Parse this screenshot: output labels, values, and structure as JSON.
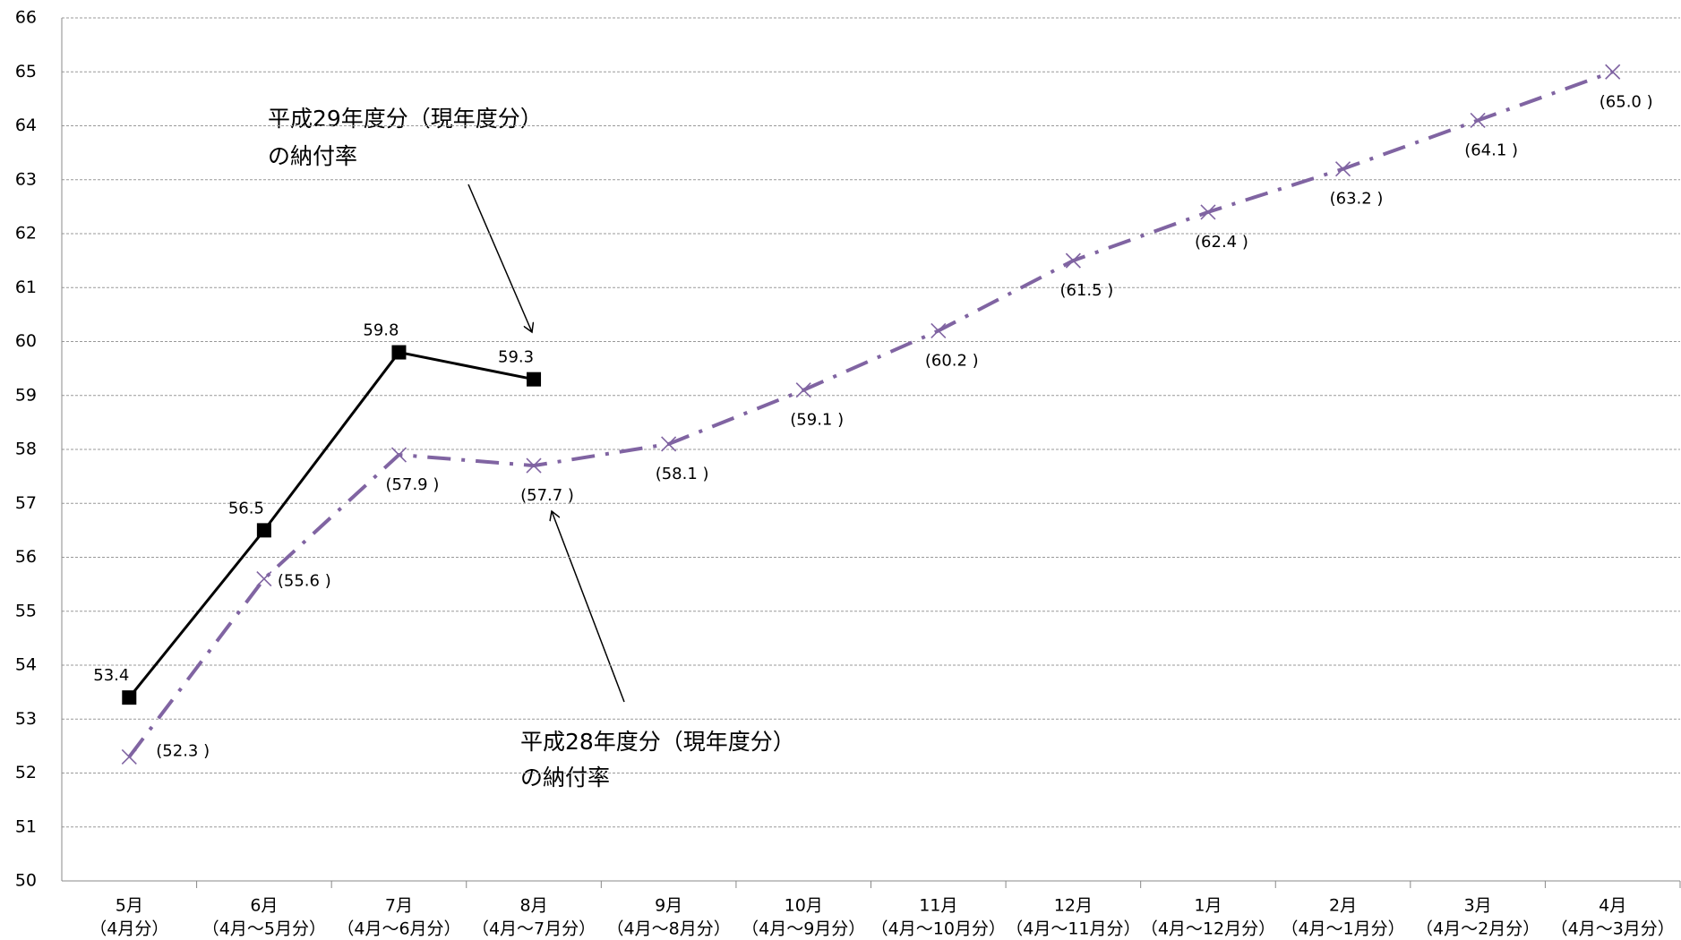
{
  "chart_data": {
    "type": "line",
    "categories": [
      [
        "5月",
        "（4月分）"
      ],
      [
        "6月",
        "（4月～5月分）"
      ],
      [
        "7月",
        "（4月～6月分）"
      ],
      [
        "8月",
        "（4月～7月分）"
      ],
      [
        "9月",
        "（4月～8月分）"
      ],
      [
        "10月",
        "（4月～9月分）"
      ],
      [
        "11月",
        "（4月～10月分）"
      ],
      [
        "12月",
        "（4月～11月分）"
      ],
      [
        "1月",
        "（4月～12月分）"
      ],
      [
        "2月",
        "（4月～1月分）"
      ],
      [
        "3月",
        "（4月～2月分）"
      ],
      [
        "4月",
        "（4月～3月分）"
      ]
    ],
    "series": [
      {
        "name": "平成29年度分",
        "color": "#000000",
        "marker": "square",
        "line_style": "solid",
        "values": [
          53.4,
          56.5,
          59.8,
          59.3,
          null,
          null,
          null,
          null,
          null,
          null,
          null,
          null
        ]
      },
      {
        "name": "平成28年度分",
        "color": "#8064a2",
        "marker": "x",
        "line_style": "dashdot",
        "values": [
          52.3,
          55.6,
          57.9,
          57.7,
          58.1,
          59.1,
          60.2,
          61.5,
          62.4,
          63.2,
          64.1,
          65.0
        ],
        "value_labels": [
          "(52.3 )",
          "(55.6 )",
          "(57.9 )",
          "(57.7 )",
          "(58.1 )",
          "(59.1 )",
          "(60.2 )",
          "(61.5 )",
          "(62.4 )",
          "(63.2 )",
          "(64.1 )",
          "(65.0 )"
        ]
      }
    ],
    "annotations": [
      [
        "平成29年度分（現年度分）",
        "の納付率"
      ],
      [
        "平成28年度分（現年度分）",
        "の納付率"
      ]
    ],
    "ylim": [
      50,
      66
    ],
    "yticks": [
      50,
      51,
      52,
      53,
      54,
      55,
      56,
      57,
      58,
      59,
      60,
      61,
      62,
      63,
      64,
      65,
      66
    ],
    "grid": true
  }
}
